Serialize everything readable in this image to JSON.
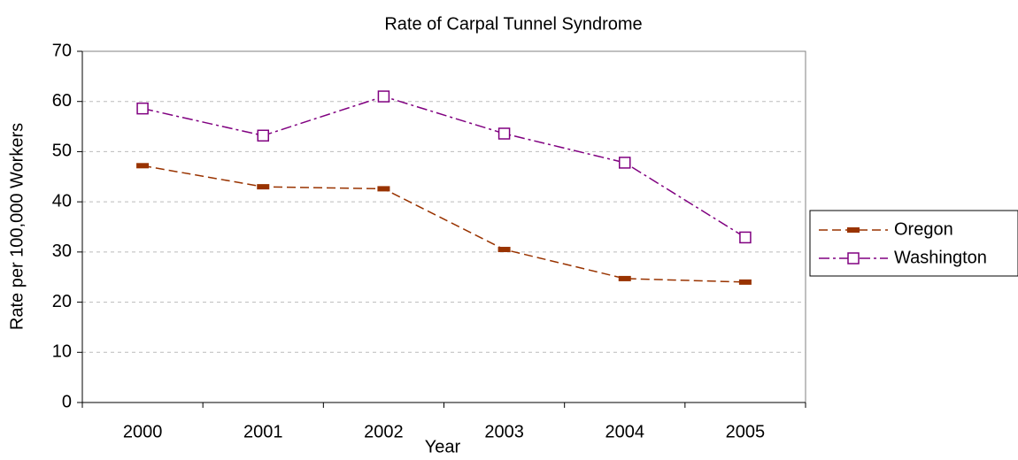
{
  "chart_data": {
    "type": "line",
    "title": "Rate of Carpal Tunnel Syndrome",
    "x_label": "Year",
    "y_label": "Rate per 100,000 Workers",
    "categories": [
      "2000",
      "2001",
      "2002",
      "2003",
      "2004",
      "2005"
    ],
    "series": [
      {
        "name": "Oregon",
        "color": "#993300",
        "values": [
          47.2,
          43.0,
          42.6,
          30.5,
          24.7,
          24.0
        ]
      },
      {
        "name": "Washington",
        "color": "#800080",
        "values": [
          58.6,
          53.2,
          61.0,
          53.6,
          47.8,
          32.9
        ]
      }
    ],
    "ylim": [
      0,
      70
    ],
    "yticks": [
      0,
      10,
      20,
      30,
      40,
      50,
      60,
      70
    ],
    "grid": true,
    "legend": "right"
  }
}
